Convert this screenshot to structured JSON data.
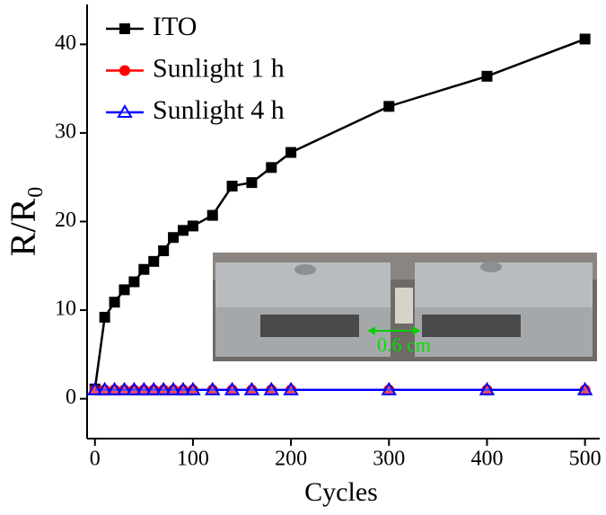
{
  "chart_data": {
    "type": "line",
    "x": [
      0,
      10,
      20,
      30,
      40,
      50,
      60,
      70,
      80,
      90,
      100,
      120,
      140,
      160,
      180,
      200,
      300,
      400,
      500
    ],
    "series": [
      {
        "name": "ITO",
        "color": "#000000",
        "marker": "square",
        "values": [
          1.1,
          9.2,
          10.9,
          12.3,
          13.2,
          14.6,
          15.5,
          16.7,
          18.2,
          19.0,
          19.5,
          20.7,
          24.0,
          24.4,
          26.1,
          27.8,
          33.0,
          36.4,
          40.6
        ]
      },
      {
        "name": "Sunlight 1 h",
        "color": "#ff0000",
        "marker": "circle",
        "values": [
          1.0,
          1.0,
          1.0,
          1.0,
          1.0,
          1.0,
          1.0,
          1.0,
          1.0,
          1.0,
          1.0,
          1.0,
          1.0,
          1.0,
          1.0,
          1.0,
          1.0,
          1.0,
          1.0
        ]
      },
      {
        "name": "Sunlight 4 h",
        "color": "#0000ff",
        "marker": "triangle",
        "values": [
          1.0,
          1.0,
          1.0,
          1.0,
          1.0,
          1.0,
          1.0,
          1.0,
          1.0,
          1.0,
          1.0,
          1.0,
          1.0,
          1.0,
          1.0,
          1.0,
          1.0,
          1.0,
          1.0
        ]
      }
    ],
    "x_label": "Cycles",
    "y_label": "R/R₀",
    "xlim": [
      -8,
      515
    ],
    "ylim": [
      -4.5,
      44.5
    ],
    "xticks": [
      0,
      100,
      200,
      300,
      400,
      500
    ],
    "yticks": [
      0,
      10,
      20,
      30,
      40
    ],
    "legend": "upper left",
    "annotation": "0.6 cm"
  }
}
